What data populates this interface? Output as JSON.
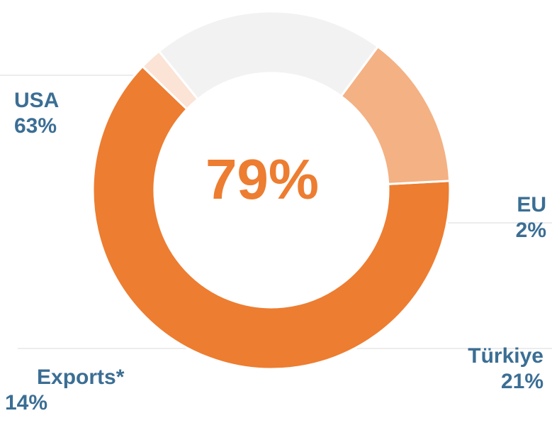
{
  "chart_data": {
    "type": "pie",
    "subtype": "donut",
    "center_label": "79%",
    "slices": [
      {
        "label": "USA",
        "value": 63,
        "display": "63%",
        "color": "#ED7D31"
      },
      {
        "label": "EU",
        "value": 2,
        "display": "2%",
        "color": "#FBE3D6"
      },
      {
        "label": "Türkiye",
        "value": 21,
        "display": "21%",
        "color": "#F2F2F2"
      },
      {
        "label": "Exports*",
        "value": 14,
        "display": "14%",
        "color": "#F4B183"
      }
    ],
    "label_color": "#3B6E94",
    "center_color": "#ED7D31",
    "leader_line_color": "#E6E6E6"
  }
}
